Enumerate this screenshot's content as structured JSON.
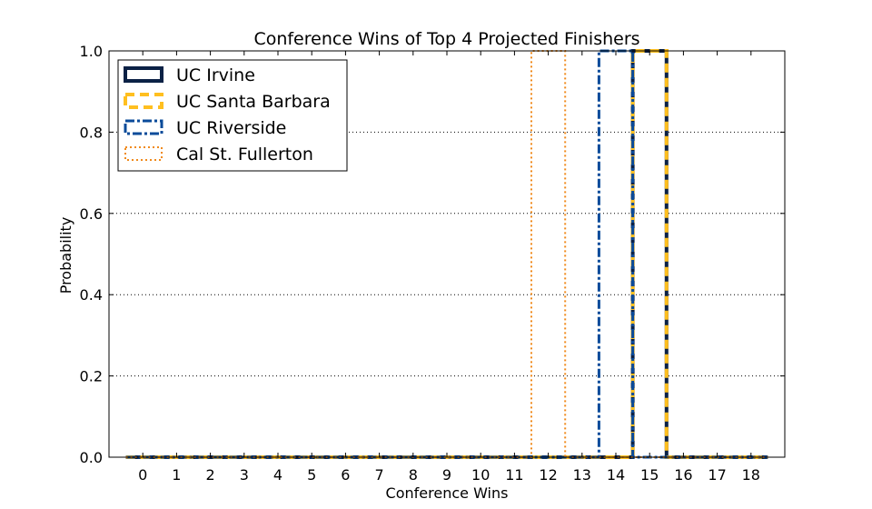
{
  "chart_data": {
    "type": "step",
    "title": "Conference Wins of Top 4 Projected Finishers",
    "xlabel": "Conference Wins",
    "ylabel": "Probability",
    "xlim": [
      -1,
      19
    ],
    "ylim": [
      0,
      1
    ],
    "x_ticks": [
      0,
      1,
      2,
      3,
      4,
      5,
      6,
      7,
      8,
      9,
      10,
      11,
      12,
      13,
      14,
      15,
      16,
      17,
      18
    ],
    "y_ticks": [
      0.0,
      0.2,
      0.4,
      0.6,
      0.8,
      1.0
    ],
    "y_tick_labels": [
      "0.0",
      "0.2",
      "0.4",
      "0.6",
      "0.8",
      "1.0"
    ],
    "grid": "horizontal-dotted",
    "legend_position": "top-left",
    "series": [
      {
        "name": "UC Irvine",
        "color": "#0b2145",
        "style": "solid",
        "values": [
          0,
          0,
          0,
          0,
          0,
          0,
          0,
          0,
          0,
          0,
          0,
          0,
          0,
          0,
          0,
          1,
          0,
          0,
          0
        ]
      },
      {
        "name": "UC Santa Barbara",
        "color": "#ffbf1f",
        "style": "dashed",
        "values": [
          0,
          0,
          0,
          0,
          0,
          0,
          0,
          0,
          0,
          0,
          0,
          0,
          0,
          0,
          0,
          1,
          0,
          0,
          0
        ]
      },
      {
        "name": "UC Riverside",
        "color": "#0a4b9a",
        "style": "dashdot",
        "values": [
          0,
          0,
          0,
          0,
          0,
          0,
          0,
          0,
          0,
          0,
          0,
          0,
          0,
          0,
          1,
          0,
          0,
          0,
          0
        ]
      },
      {
        "name": "Cal St. Fullerton",
        "color": "#f08a1c",
        "style": "dotted",
        "values": [
          0,
          0,
          0,
          0,
          0,
          0,
          0,
          0,
          0,
          0,
          0,
          0,
          1,
          0,
          0,
          0,
          0,
          0,
          0
        ]
      }
    ]
  }
}
